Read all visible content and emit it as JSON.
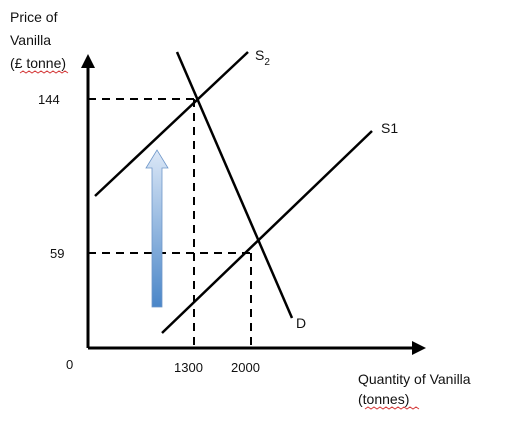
{
  "diagram": {
    "y_axis_title": [
      "Price of",
      "Vanilla",
      "(£ tonne)"
    ],
    "x_axis_title": [
      "Quantity of Vanilla",
      "(tonnes)"
    ],
    "origin_label": "0",
    "price_ticks": [
      "144",
      "59"
    ],
    "quantity_ticks": [
      "1300",
      "2000"
    ],
    "curve_labels": {
      "supply_shifted": "S",
      "supply_shifted_subscript": "2",
      "supply_original": "S1",
      "demand": "D"
    },
    "colors": {
      "line": "#000000",
      "arrow_top": "#dce8f7",
      "arrow_bottom": "#4a86c8"
    }
  }
}
